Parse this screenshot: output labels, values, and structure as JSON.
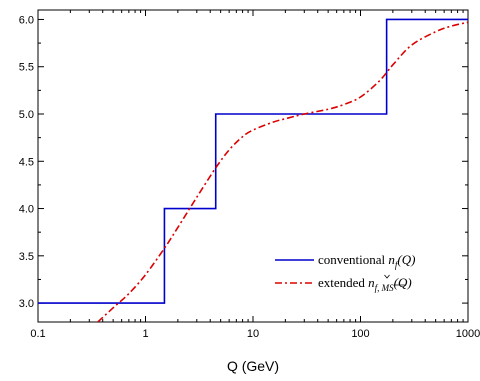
{
  "chart_data": {
    "type": "line",
    "xlabel": "Q (GeV)",
    "ylabel": "",
    "xscale": "log",
    "xlim": [
      0.1,
      1000
    ],
    "ylim": [
      2.8,
      6.1
    ],
    "grid": false,
    "legend_position": "bottom-right",
    "x_ticks": [
      {
        "value": 0.1,
        "label": "0.1"
      },
      {
        "value": 1,
        "label": "1"
      },
      {
        "value": 10,
        "label": "10"
      },
      {
        "value": 100,
        "label": "100"
      },
      {
        "value": 1000,
        "label": "1000"
      }
    ],
    "y_ticks": [
      {
        "value": 3.0,
        "label": "3.0"
      },
      {
        "value": 3.5,
        "label": "3.5"
      },
      {
        "value": 4.0,
        "label": "4.0"
      },
      {
        "value": 4.5,
        "label": "4.5"
      },
      {
        "value": 5.0,
        "label": "5.0"
      },
      {
        "value": 5.5,
        "label": "5.5"
      },
      {
        "value": 6.0,
        "label": "6.0"
      }
    ],
    "series": [
      {
        "name_prefix": "conventional ",
        "name_symbol": "n",
        "name_subscript": "f",
        "name_suffix": "(Q)",
        "style": "solid",
        "color": "#0000cc",
        "x": [
          0.1,
          1.5,
          1.5,
          4.5,
          4.5,
          175,
          175,
          1000
        ],
        "y": [
          3.0,
          3.0,
          4.0,
          4.0,
          5.0,
          5.0,
          6.0,
          6.0
        ]
      },
      {
        "name_prefix": "extended ",
        "name_symbol": "n",
        "name_subscript": "f, MS",
        "name_suffix": "(Q)",
        "style": "dashdot",
        "color": "#dd0000",
        "x": [
          0.36,
          0.5,
          0.7,
          1.0,
          1.5,
          2.0,
          3.0,
          4.5,
          6.0,
          8.0,
          10,
          15,
          20,
          30,
          50,
          70,
          100,
          150,
          200,
          300,
          500,
          700,
          1000
        ],
        "y": [
          2.8,
          2.95,
          3.1,
          3.3,
          3.58,
          3.8,
          4.12,
          4.43,
          4.62,
          4.76,
          4.83,
          4.91,
          4.95,
          5.0,
          5.05,
          5.1,
          5.18,
          5.35,
          5.52,
          5.73,
          5.87,
          5.93,
          5.97
        ]
      }
    ]
  }
}
